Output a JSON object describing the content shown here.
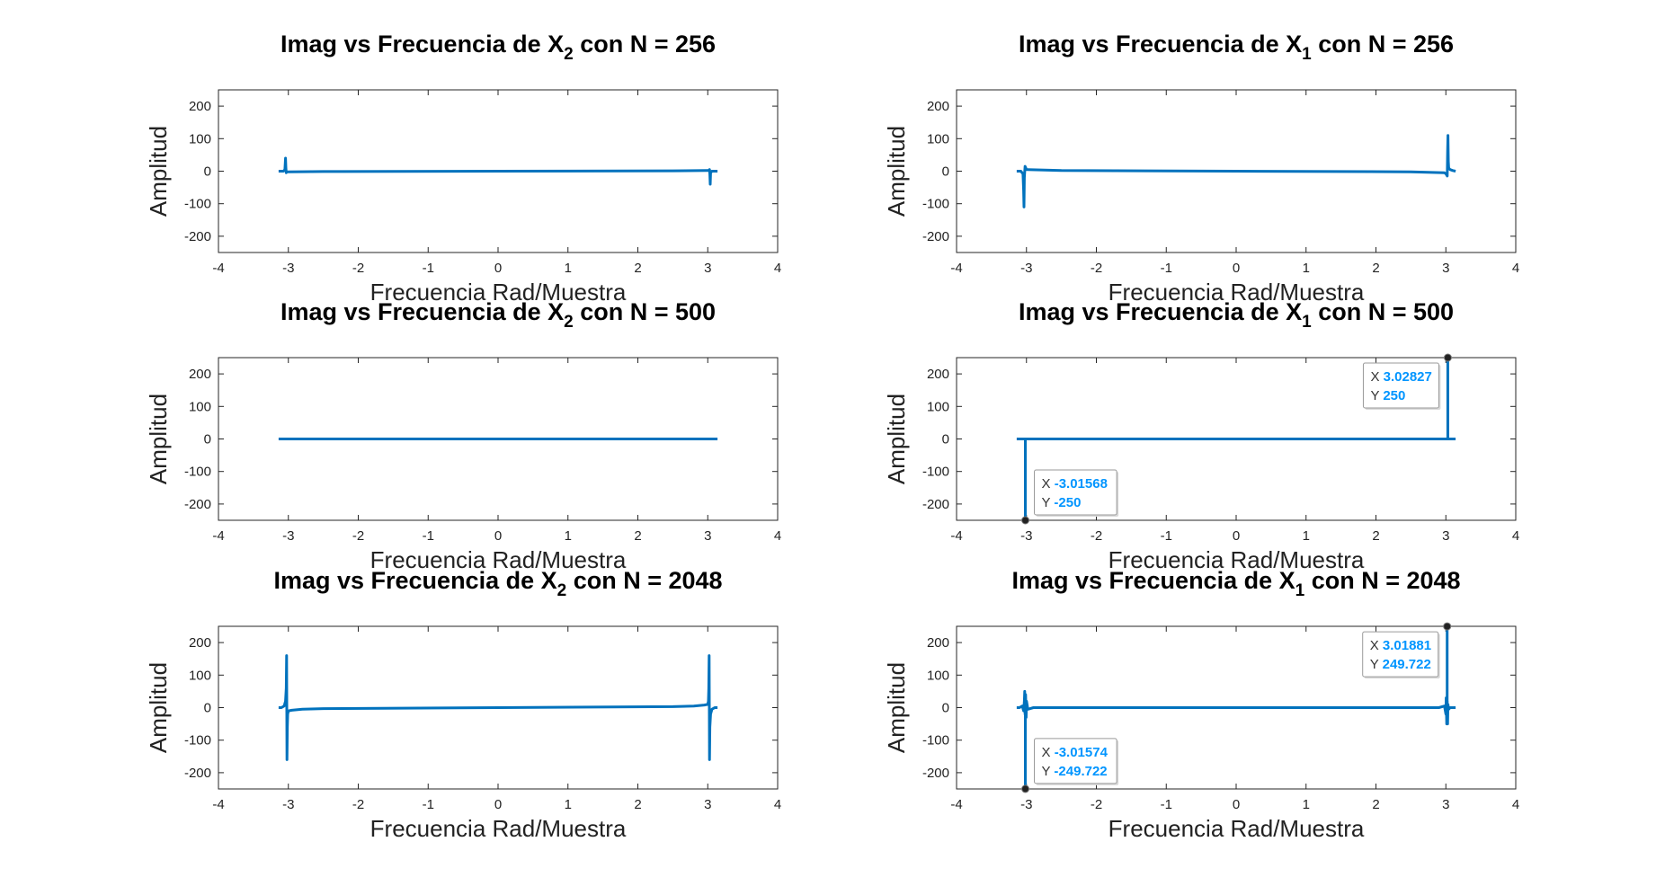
{
  "colors": {
    "series": "#0072BD",
    "axis": "#262626",
    "datatip_value": "#0095ff",
    "datatip_label": "#333333"
  },
  "chart_data": [
    {
      "type": "line",
      "title": "Imag vs Frecuencia de X₂ con N = 256",
      "title_parts": [
        "Imag vs Frecuencia de X",
        "2",
        " con N = 256"
      ],
      "xlabel": "Frecuencia Rad/Muestra",
      "ylabel": "Amplitud",
      "xlim": [
        -4,
        4
      ],
      "ylim": [
        -250,
        250
      ],
      "xticks": [
        "-4",
        "-3",
        "-2",
        "-1",
        "0",
        "1",
        "2",
        "3",
        "4"
      ],
      "yticks": [
        "-200",
        "-100",
        "0",
        "100",
        "200"
      ],
      "grid": false,
      "series": [
        {
          "x": [
            -3.14,
            -3.07,
            -3.05,
            -3.04,
            -3.035,
            -3.03,
            -3.025,
            -3.02,
            -3.0,
            -2.5,
            0,
            2.5,
            2.98,
            3.0,
            3.02,
            3.025,
            3.03,
            3.035,
            3.04,
            3.06,
            3.14
          ],
          "y": [
            0,
            0,
            5,
            40,
            10,
            -5,
            -3,
            -2,
            -2,
            -1,
            0,
            1,
            2,
            2,
            3,
            5,
            -10,
            -40,
            -5,
            0,
            0
          ]
        }
      ],
      "datatips": []
    },
    {
      "type": "line",
      "title": "Imag vs Frecuencia de X₁ con N = 256",
      "title_parts": [
        "Imag vs Frecuencia de X",
        "1",
        " con N = 256"
      ],
      "xlabel": "Frecuencia Rad/Muestra",
      "ylabel": "Amplitud",
      "xlim": [
        -4,
        4
      ],
      "ylim": [
        -250,
        250
      ],
      "xticks": [
        "-4",
        "-3",
        "-2",
        "-1",
        "0",
        "1",
        "2",
        "3",
        "4"
      ],
      "yticks": [
        "-200",
        "-100",
        "0",
        "100",
        "200"
      ],
      "grid": false,
      "series": [
        {
          "x": [
            -3.14,
            -3.08,
            -3.05,
            -3.04,
            -3.035,
            -3.03,
            -3.02,
            -3.0,
            -2.5,
            0,
            2.5,
            2.98,
            3.0,
            3.02,
            3.025,
            3.03,
            3.035,
            3.04,
            3.06,
            3.1,
            3.14
          ],
          "y": [
            0,
            0,
            -8,
            -60,
            -110,
            -20,
            15,
            5,
            2,
            0,
            -2,
            -5,
            -8,
            -15,
            60,
            110,
            30,
            10,
            5,
            2,
            0
          ]
        }
      ],
      "datatips": []
    },
    {
      "type": "line",
      "title": "Imag vs Frecuencia de X₂ con N = 500",
      "title_parts": [
        "Imag vs Frecuencia de X",
        "2",
        " con N = 500"
      ],
      "xlabel": "Frecuencia Rad/Muestra",
      "ylabel": "Amplitud",
      "xlim": [
        -4,
        4
      ],
      "ylim": [
        -250,
        250
      ],
      "xticks": [
        "-4",
        "-3",
        "-2",
        "-1",
        "0",
        "1",
        "2",
        "3",
        "4"
      ],
      "yticks": [
        "-200",
        "-100",
        "0",
        "100",
        "200"
      ],
      "grid": false,
      "series": [
        {
          "x": [
            -3.14,
            3.14
          ],
          "y": [
            0,
            0
          ]
        }
      ],
      "datatips": []
    },
    {
      "type": "line",
      "title": "Imag vs Frecuencia de X₁ con N = 500",
      "title_parts": [
        "Imag vs Frecuencia de X",
        "1",
        " con N = 500"
      ],
      "xlabel": "Frecuencia Rad/Muestra",
      "ylabel": "Amplitud",
      "xlim": [
        -4,
        4
      ],
      "ylim": [
        -250,
        250
      ],
      "xticks": [
        "-4",
        "-3",
        "-2",
        "-1",
        "0",
        "1",
        "2",
        "3",
        "4"
      ],
      "yticks": [
        "-200",
        "-100",
        "0",
        "100",
        "200"
      ],
      "grid": false,
      "series": [
        {
          "x": [
            -3.14,
            -3.0157,
            -3.01568,
            -3.0156,
            3.0282,
            3.02827,
            3.0283,
            3.14
          ],
          "y": [
            0,
            0,
            -250,
            0,
            0,
            250,
            0,
            0
          ]
        }
      ],
      "datatips": [
        {
          "x": 3.02827,
          "y": 250,
          "x_label": "X",
          "y_label": "Y",
          "x_text": "3.02827",
          "y_text": "250",
          "side": "left",
          "vert": "below"
        },
        {
          "x": -3.01568,
          "y": -250,
          "x_label": "X",
          "y_label": "Y",
          "x_text": "-3.01568",
          "y_text": "-250",
          "side": "right",
          "vert": "above"
        }
      ]
    },
    {
      "type": "line",
      "title": "Imag vs Frecuencia de X₂ con N = 2048",
      "title_parts": [
        "Imag vs Frecuencia de X",
        "2",
        " con N = 2048"
      ],
      "xlabel": "Frecuencia Rad/Muestra",
      "ylabel": "Amplitud",
      "xlim": [
        -4,
        4
      ],
      "ylim": [
        -250,
        250
      ],
      "xticks": [
        "-4",
        "-3",
        "-2",
        "-1",
        "0",
        "1",
        "2",
        "3",
        "4"
      ],
      "yticks": [
        "-200",
        "-100",
        "0",
        "100",
        "200"
      ],
      "grid": false,
      "series": [
        {
          "x": [
            -3.14,
            -3.1,
            -3.06,
            -3.04,
            -3.03,
            -3.025,
            -3.02,
            -3.015,
            -3.01,
            -3.0,
            -2.95,
            -2.8,
            -2.5,
            0,
            2.5,
            2.8,
            2.95,
            3.0,
            3.01,
            3.015,
            3.02,
            3.025,
            3.03,
            3.04,
            3.06,
            3.1,
            3.14
          ],
          "y": [
            0,
            0,
            5,
            20,
            60,
            160,
            -160,
            -60,
            -20,
            -10,
            -8,
            -5,
            -3,
            0,
            3,
            5,
            8,
            10,
            20,
            60,
            160,
            -160,
            -60,
            -20,
            -5,
            0,
            0
          ]
        }
      ],
      "datatips": []
    },
    {
      "type": "line",
      "title": "Imag vs Frecuencia de X₁ con N = 2048",
      "title_parts": [
        "Imag vs Frecuencia de X",
        "1",
        " con N = 2048"
      ],
      "xlabel": "Frecuencia Rad/Muestra",
      "ylabel": "Amplitud",
      "xlim": [
        -4,
        4
      ],
      "ylim": [
        -250,
        250
      ],
      "xticks": [
        "-4",
        "-3",
        "-2",
        "-1",
        "0",
        "1",
        "2",
        "3",
        "4"
      ],
      "yticks": [
        "-200",
        "-100",
        "0",
        "100",
        "200"
      ],
      "grid": false,
      "series": [
        {
          "x": [
            -3.14,
            -3.1,
            -3.06,
            -3.04,
            -3.03,
            -3.025,
            -3.02,
            -3.0158,
            -3.01574,
            -3.0157,
            -3.012,
            -3.005,
            -3.0,
            -2.98,
            -2.9,
            -2.5,
            0,
            2.5,
            2.9,
            2.98,
            3.0,
            3.005,
            3.012,
            3.0188,
            3.01881,
            3.0189,
            3.02,
            3.025,
            3.03,
            3.04,
            3.06,
            3.1,
            3.14
          ],
          "y": [
            0,
            0,
            5,
            -10,
            20,
            50,
            -20,
            0,
            -249.722,
            0,
            40,
            -30,
            20,
            -5,
            0,
            0,
            0,
            0,
            0,
            5,
            -20,
            30,
            -50,
            0,
            249.722,
            0,
            20,
            -50,
            10,
            -5,
            0,
            0,
            0
          ]
        }
      ],
      "datatips": [
        {
          "x": 3.01881,
          "y": 249.722,
          "x_label": "X",
          "y_label": "Y",
          "x_text": "3.01881",
          "y_text": "249.722",
          "side": "left",
          "vert": "below"
        },
        {
          "x": -3.01574,
          "y": -249.722,
          "x_label": "X",
          "y_label": "Y",
          "x_text": "-3.01574",
          "y_text": "-249.722",
          "side": "right",
          "vert": "above"
        }
      ]
    }
  ]
}
